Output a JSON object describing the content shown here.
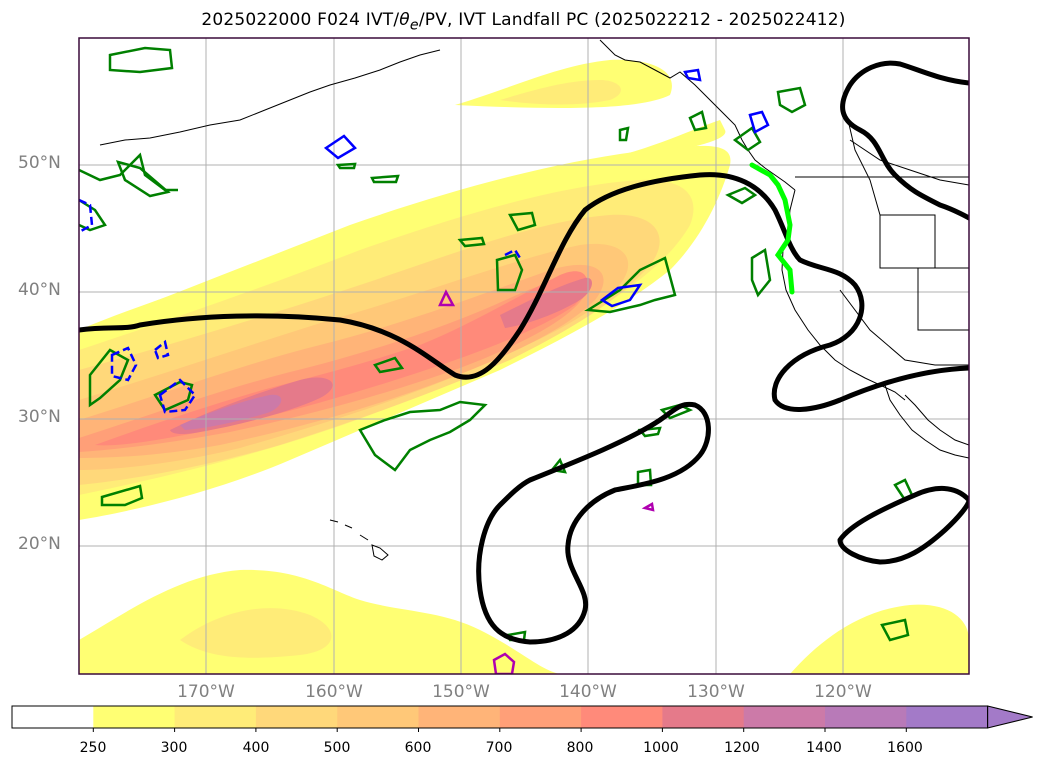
{
  "title": "2025022000 F024 IVT/θe/PV, IVT Landfall PC (2025022212 - 2025022412)",
  "title_parts": {
    "pre": "2025022000 F024 IVT/",
    "theta": "θ",
    "sub": "e",
    "post": "/PV, IVT Landfall PC (2025022212 - 2025022412)"
  },
  "map": {
    "lat_ticks": [
      "20°N",
      "30°N",
      "40°N",
      "50°N"
    ],
    "lon_ticks": [
      "170°W",
      "160°W",
      "150°W",
      "140°W",
      "130°W",
      "120°W"
    ],
    "colors": {
      "ocean": "#ffffff",
      "frame": "#3a0a3a",
      "grid": "#b0b0b0",
      "coast": "#000000",
      "theta_e_contour": "#000000",
      "pv_positive": "#008000",
      "pv_negative": "#0000ff",
      "pv_high": "#b000b0",
      "landfall": "#00ff00"
    }
  },
  "colorbar": {
    "levels": [
      "250",
      "300",
      "400",
      "500",
      "600",
      "700",
      "800",
      "1000",
      "1200",
      "1400",
      "1600"
    ],
    "colors": [
      "#ffffff",
      "#ffff73",
      "#ffec78",
      "#ffd87a",
      "#ffc878",
      "#ffb478",
      "#ff9f78",
      "#ff8a7a",
      "#e57a8a",
      "#cc7aa8",
      "#b87ab8",
      "#a37ac8"
    ]
  }
}
